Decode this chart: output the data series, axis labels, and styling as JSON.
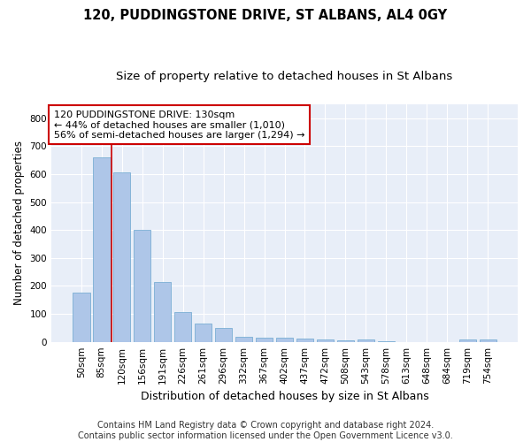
{
  "title1": "120, PUDDINGSTONE DRIVE, ST ALBANS, AL4 0GY",
  "title2": "Size of property relative to detached houses in St Albans",
  "xlabel": "Distribution of detached houses by size in St Albans",
  "ylabel": "Number of detached properties",
  "footer1": "Contains HM Land Registry data © Crown copyright and database right 2024.",
  "footer2": "Contains public sector information licensed under the Open Government Licence v3.0.",
  "categories": [
    "50sqm",
    "85sqm",
    "120sqm",
    "156sqm",
    "191sqm",
    "226sqm",
    "261sqm",
    "296sqm",
    "332sqm",
    "367sqm",
    "402sqm",
    "437sqm",
    "472sqm",
    "508sqm",
    "543sqm",
    "578sqm",
    "613sqm",
    "648sqm",
    "684sqm",
    "719sqm",
    "754sqm"
  ],
  "values": [
    175,
    660,
    605,
    400,
    215,
    108,
    65,
    48,
    18,
    15,
    14,
    13,
    8,
    5,
    8,
    3,
    0,
    0,
    0,
    7,
    7
  ],
  "bar_color": "#aec6e8",
  "bar_edge_color": "#7aafd4",
  "vline_color": "#cc0000",
  "annotation_text": "120 PUDDINGSTONE DRIVE: 130sqm\n← 44% of detached houses are smaller (1,010)\n56% of semi-detached houses are larger (1,294) →",
  "annotation_box_color": "#ffffff",
  "annotation_box_edgecolor": "#cc0000",
  "ylim": [
    0,
    850
  ],
  "yticks": [
    0,
    100,
    200,
    300,
    400,
    500,
    600,
    700,
    800
  ],
  "fig_background": "#ffffff",
  "ax_background": "#e8eef8",
  "title1_fontsize": 10.5,
  "title2_fontsize": 9.5,
  "xlabel_fontsize": 9,
  "ylabel_fontsize": 8.5,
  "tick_fontsize": 7.5,
  "footer_fontsize": 7,
  "annotation_fontsize": 8
}
